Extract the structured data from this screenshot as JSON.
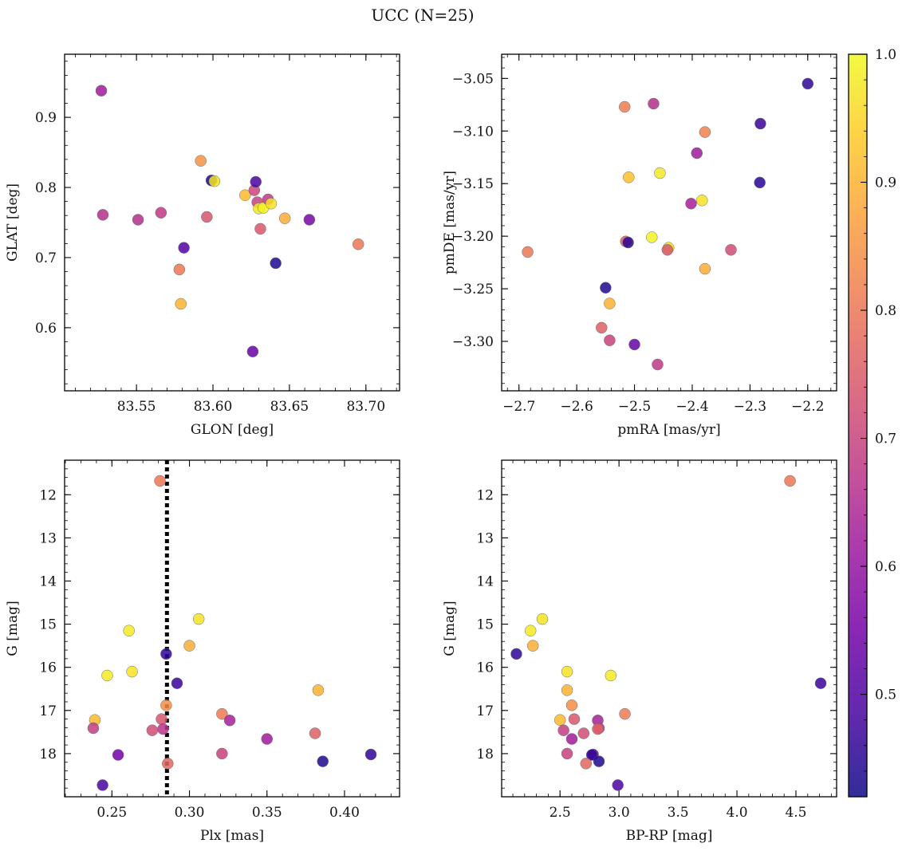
{
  "figure": {
    "title": "UCC (N=25)"
  },
  "colormap": {
    "name": "plasma",
    "stops": [
      "#0d0887",
      "#46039f",
      "#7201a8",
      "#9c179e",
      "#bd3786",
      "#d8576b",
      "#ed7953",
      "#fb9f3a",
      "#fdca26",
      "#f0f921"
    ],
    "vmin": 0.42,
    "vmax": 1.0,
    "ticks": [
      "0.5",
      "0.6",
      "0.7",
      "0.8",
      "0.9",
      "1.0"
    ],
    "tick_values": [
      0.5,
      0.6,
      0.7,
      0.8,
      0.9,
      1.0
    ]
  },
  "chart_data": [
    {
      "type": "scatter",
      "xlabel": "GLON [deg]",
      "ylabel": "GLAT [deg]",
      "xlim": [
        83.503,
        83.722
      ],
      "ylim": [
        0.51,
        0.99
      ],
      "xticks": [
        "83.55",
        "83.60",
        "83.65",
        "83.70"
      ],
      "xtick_values": [
        83.55,
        83.6,
        83.65,
        83.7
      ],
      "yticks": [
        "0.6",
        "0.7",
        "0.8",
        "0.9"
      ],
      "ytick_values": [
        0.6,
        0.7,
        0.8,
        0.9
      ],
      "x": [
        83.527,
        83.528,
        83.551,
        83.566,
        83.578,
        83.579,
        83.581,
        83.592,
        83.596,
        83.599,
        83.601,
        83.621,
        83.626,
        83.627,
        83.628,
        83.629,
        83.63,
        83.631,
        83.633,
        83.636,
        83.638,
        83.641,
        83.647,
        83.663,
        83.695
      ],
      "y": [
        0.938,
        0.761,
        0.754,
        0.764,
        0.683,
        0.634,
        0.714,
        0.838,
        0.758,
        0.81,
        0.809,
        0.789,
        0.566,
        0.796,
        0.808,
        0.779,
        0.77,
        0.741,
        0.771,
        0.783,
        0.777,
        0.692,
        0.756,
        0.754,
        0.719
      ],
      "prob": [
        0.62,
        0.66,
        0.66,
        0.68,
        0.8,
        0.9,
        0.5,
        0.85,
        0.74,
        0.43,
        0.97,
        0.91,
        0.53,
        0.71,
        0.49,
        0.7,
        0.98,
        0.74,
        0.99,
        0.68,
        0.97,
        0.44,
        0.89,
        0.56,
        0.8
      ]
    },
    {
      "type": "scatter",
      "xlabel": "pmRA [mas/yr]",
      "ylabel": "pmDE [mas/yr]",
      "xlim": [
        -2.73,
        -2.15
      ],
      "ylim": [
        -3.347,
        -3.027
      ],
      "xticks": [
        "−2.7",
        "−2.6",
        "−2.5",
        "−2.4",
        "−2.3",
        "−2.2"
      ],
      "xtick_values": [
        -2.7,
        -2.6,
        -2.5,
        -2.4,
        -2.3,
        -2.2
      ],
      "yticks": [
        "−3.05",
        "−3.10",
        "−3.15",
        "−3.20",
        "−3.25",
        "−3.30"
      ],
      "ytick_values": [
        -3.05,
        -3.1,
        -3.15,
        -3.2,
        -3.25,
        -3.3
      ],
      "x": [
        -2.2,
        -2.282,
        -2.283,
        -2.378,
        -2.392,
        -2.402,
        -2.383,
        -2.456,
        -2.51,
        -2.517,
        -2.467,
        -2.47,
        -2.441,
        -2.443,
        -2.378,
        -2.333,
        -2.515,
        -2.511,
        -2.685,
        -2.55,
        -2.543,
        -2.557,
        -2.543,
        -2.5,
        -2.46
      ],
      "y": [
        -3.055,
        -3.093,
        -3.149,
        -3.101,
        -3.121,
        -3.169,
        -3.166,
        -3.14,
        -3.144,
        -3.077,
        -3.074,
        -3.201,
        -3.211,
        -3.213,
        -3.231,
        -3.213,
        -3.205,
        -3.206,
        -3.215,
        -3.249,
        -3.264,
        -3.287,
        -3.299,
        -3.303,
        -3.322
      ],
      "prob": [
        0.46,
        0.47,
        0.45,
        0.82,
        0.62,
        0.63,
        0.97,
        0.98,
        0.92,
        0.81,
        0.66,
        0.99,
        0.97,
        0.74,
        0.89,
        0.72,
        0.75,
        0.45,
        0.8,
        0.44,
        0.9,
        0.76,
        0.7,
        0.53,
        0.68
      ]
    },
    {
      "type": "scatter",
      "xlabel": "Plx [mas]",
      "ylabel": "G [mag]",
      "xlim": [
        0.2195,
        0.4355
      ],
      "ylim": [
        19.0,
        11.2
      ],
      "yinverted": true,
      "vline": 0.2855,
      "xticks": [
        "0.25",
        "0.30",
        "0.35",
        "0.40"
      ],
      "xtick_values": [
        0.25,
        0.3,
        0.35,
        0.4
      ],
      "yticks": [
        "12",
        "13",
        "14",
        "15",
        "16",
        "17",
        "18"
      ],
      "ytick_values": [
        12,
        13,
        14,
        15,
        16,
        17,
        18
      ],
      "x": [
        0.281,
        0.306,
        0.261,
        0.3,
        0.247,
        0.263,
        0.285,
        0.292,
        0.383,
        0.285,
        0.239,
        0.321,
        0.326,
        0.282,
        0.238,
        0.276,
        0.283,
        0.381,
        0.254,
        0.35,
        0.321,
        0.417,
        0.286,
        0.386,
        0.244
      ],
      "y": [
        11.68,
        14.88,
        15.15,
        15.5,
        16.19,
        16.1,
        15.69,
        16.37,
        16.53,
        16.88,
        17.22,
        17.08,
        17.23,
        17.2,
        17.41,
        17.46,
        17.43,
        17.53,
        18.03,
        17.66,
        18.0,
        18.02,
        18.23,
        18.18,
        18.73
      ],
      "prob": [
        0.8,
        0.97,
        0.98,
        0.89,
        0.98,
        0.97,
        0.46,
        0.47,
        0.9,
        0.84,
        0.91,
        0.81,
        0.63,
        0.74,
        0.69,
        0.72,
        0.67,
        0.76,
        0.55,
        0.62,
        0.7,
        0.46,
        0.77,
        0.44,
        0.49
      ]
    },
    {
      "type": "scatter",
      "xlabel": "BP-RP [mag]",
      "ylabel": "G [mag]",
      "xlim": [
        2.005,
        4.845
      ],
      "ylim": [
        19.0,
        11.2
      ],
      "yinverted": true,
      "xticks": [
        "2.5",
        "3.0",
        "3.5",
        "4.0",
        "4.5"
      ],
      "xtick_values": [
        2.5,
        3.0,
        3.5,
        4.0,
        4.5
      ],
      "yticks": [
        "12",
        "13",
        "14",
        "15",
        "16",
        "17",
        "18"
      ],
      "ytick_values": [
        12,
        13,
        14,
        15,
        16,
        17,
        18
      ],
      "x": [
        4.45,
        2.35,
        2.25,
        2.27,
        2.13,
        2.56,
        2.93,
        4.71,
        2.56,
        2.6,
        2.5,
        3.05,
        2.62,
        2.82,
        2.53,
        2.7,
        2.83,
        2.6,
        2.56,
        2.78,
        2.77,
        2.72,
        2.82,
        2.99,
        2.83
      ],
      "y": [
        11.68,
        14.88,
        15.15,
        15.5,
        15.69,
        16.1,
        16.19,
        16.37,
        16.53,
        16.88,
        17.22,
        17.08,
        17.2,
        17.23,
        17.46,
        17.53,
        17.41,
        17.66,
        18.0,
        18.02,
        18.03,
        18.23,
        17.43,
        18.73,
        18.18
      ],
      "prob": [
        0.8,
        0.97,
        0.98,
        0.89,
        0.46,
        0.97,
        0.98,
        0.47,
        0.9,
        0.84,
        0.91,
        0.81,
        0.74,
        0.63,
        0.69,
        0.72,
        0.67,
        0.62,
        0.7,
        0.55,
        0.46,
        0.77,
        0.76,
        0.49,
        0.44
      ]
    }
  ]
}
